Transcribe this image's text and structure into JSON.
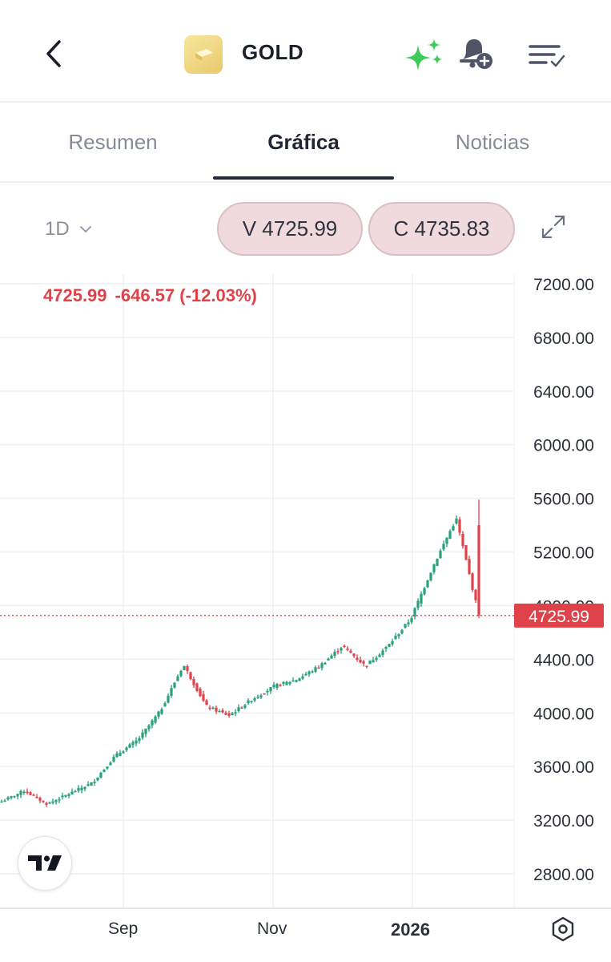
{
  "header": {
    "title": "GOLD",
    "icons": [
      "back-icon",
      "gold-bar-icon",
      "sparkle-icon",
      "bell-add-icon",
      "watchlist-icon"
    ]
  },
  "tabs": [
    {
      "label": "Resumen",
      "active": false
    },
    {
      "label": "Gráfica",
      "active": true
    },
    {
      "label": "Noticias",
      "active": false
    }
  ],
  "toolbar": {
    "interval": "1D",
    "sell_label": "V 4725.99",
    "buy_label": "C 4735.83"
  },
  "quote": {
    "price": "4725.99",
    "change": "-646.57 (-12.03%)",
    "current_price_label": "4725.99",
    "color_down": "#e0424a",
    "color_up": "#26a17b"
  },
  "chart_data": {
    "type": "candlestick",
    "interval": "1D",
    "y_ticks": [
      "7200.00",
      "6800.00",
      "6400.00",
      "6000.00",
      "5600.00",
      "5200.00",
      "4800.00",
      "4400.00",
      "4000.00",
      "3600.00",
      "3200.00",
      "2800.00"
    ],
    "x_ticks": [
      "Sep",
      "Nov",
      "2026"
    ],
    "ylim": [
      2700,
      7300
    ],
    "last_price": 4725.99,
    "close_path": [
      {
        "label": "start",
        "value": 3340
      },
      {
        "label": "early Aug",
        "value": 3420
      },
      {
        "label": "mid Aug",
        "value": 3320
      },
      {
        "label": "late Aug",
        "value": 3400
      },
      {
        "label": "Sep",
        "value": 3480
      },
      {
        "label": "mid Sep",
        "value": 3680
      },
      {
        "label": "late Sep",
        "value": 3800
      },
      {
        "label": "early Oct",
        "value": 4020
      },
      {
        "label": "Oct peak",
        "value": 4360
      },
      {
        "label": "late Oct",
        "value": 4050
      },
      {
        "label": "Nov",
        "value": 3980
      },
      {
        "label": "mid Nov",
        "value": 4100
      },
      {
        "label": "late Nov",
        "value": 4200
      },
      {
        "label": "early Dec",
        "value": 4250
      },
      {
        "label": "mid Dec",
        "value": 4350
      },
      {
        "label": "Dec peak",
        "value": 4500
      },
      {
        "label": "late Dec",
        "value": 4350
      },
      {
        "label": "2026",
        "value": 4500
      },
      {
        "label": "mid Jan",
        "value": 4700
      },
      {
        "label": "late Jan",
        "value": 5100
      },
      {
        "label": "Jan peak",
        "value": 5450
      },
      {
        "label": "last",
        "value": 4725.99
      }
    ]
  }
}
